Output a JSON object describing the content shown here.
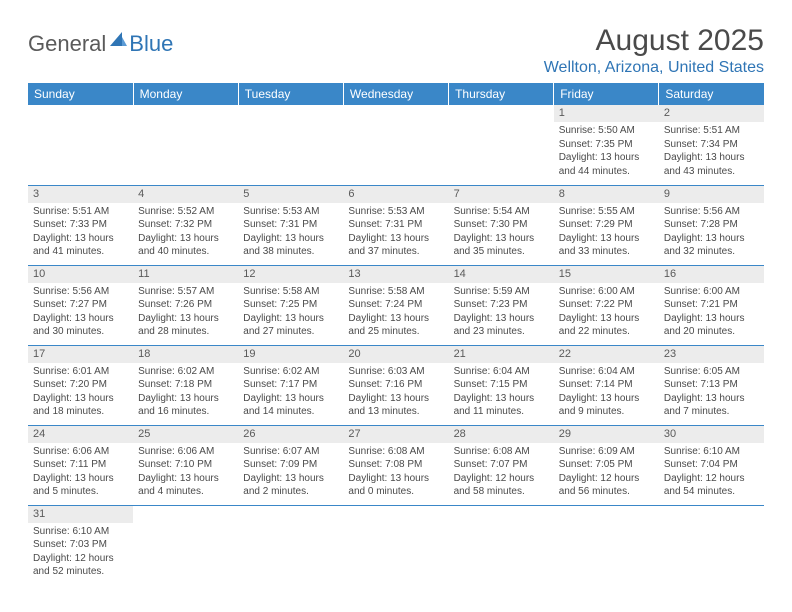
{
  "logo": {
    "part1": "General",
    "part2": "Blue"
  },
  "title": "August 2025",
  "location": "Wellton, Arizona, United States",
  "colors": {
    "header_bg": "#3a87c8",
    "header_fg": "#ffffff",
    "daynum_bg": "#ececec",
    "text": "#4a4a4a",
    "accent": "#2f75b5",
    "row_border": "#3a87c8"
  },
  "weekdays": [
    "Sunday",
    "Monday",
    "Tuesday",
    "Wednesday",
    "Thursday",
    "Friday",
    "Saturday"
  ],
  "weeks": [
    [
      null,
      null,
      null,
      null,
      null,
      {
        "n": "1",
        "sr": "Sunrise: 5:50 AM",
        "ss": "Sunset: 7:35 PM",
        "dl": "Daylight: 13 hours and 44 minutes."
      },
      {
        "n": "2",
        "sr": "Sunrise: 5:51 AM",
        "ss": "Sunset: 7:34 PM",
        "dl": "Daylight: 13 hours and 43 minutes."
      }
    ],
    [
      {
        "n": "3",
        "sr": "Sunrise: 5:51 AM",
        "ss": "Sunset: 7:33 PM",
        "dl": "Daylight: 13 hours and 41 minutes."
      },
      {
        "n": "4",
        "sr": "Sunrise: 5:52 AM",
        "ss": "Sunset: 7:32 PM",
        "dl": "Daylight: 13 hours and 40 minutes."
      },
      {
        "n": "5",
        "sr": "Sunrise: 5:53 AM",
        "ss": "Sunset: 7:31 PM",
        "dl": "Daylight: 13 hours and 38 minutes."
      },
      {
        "n": "6",
        "sr": "Sunrise: 5:53 AM",
        "ss": "Sunset: 7:31 PM",
        "dl": "Daylight: 13 hours and 37 minutes."
      },
      {
        "n": "7",
        "sr": "Sunrise: 5:54 AM",
        "ss": "Sunset: 7:30 PM",
        "dl": "Daylight: 13 hours and 35 minutes."
      },
      {
        "n": "8",
        "sr": "Sunrise: 5:55 AM",
        "ss": "Sunset: 7:29 PM",
        "dl": "Daylight: 13 hours and 33 minutes."
      },
      {
        "n": "9",
        "sr": "Sunrise: 5:56 AM",
        "ss": "Sunset: 7:28 PM",
        "dl": "Daylight: 13 hours and 32 minutes."
      }
    ],
    [
      {
        "n": "10",
        "sr": "Sunrise: 5:56 AM",
        "ss": "Sunset: 7:27 PM",
        "dl": "Daylight: 13 hours and 30 minutes."
      },
      {
        "n": "11",
        "sr": "Sunrise: 5:57 AM",
        "ss": "Sunset: 7:26 PM",
        "dl": "Daylight: 13 hours and 28 minutes."
      },
      {
        "n": "12",
        "sr": "Sunrise: 5:58 AM",
        "ss": "Sunset: 7:25 PM",
        "dl": "Daylight: 13 hours and 27 minutes."
      },
      {
        "n": "13",
        "sr": "Sunrise: 5:58 AM",
        "ss": "Sunset: 7:24 PM",
        "dl": "Daylight: 13 hours and 25 minutes."
      },
      {
        "n": "14",
        "sr": "Sunrise: 5:59 AM",
        "ss": "Sunset: 7:23 PM",
        "dl": "Daylight: 13 hours and 23 minutes."
      },
      {
        "n": "15",
        "sr": "Sunrise: 6:00 AM",
        "ss": "Sunset: 7:22 PM",
        "dl": "Daylight: 13 hours and 22 minutes."
      },
      {
        "n": "16",
        "sr": "Sunrise: 6:00 AM",
        "ss": "Sunset: 7:21 PM",
        "dl": "Daylight: 13 hours and 20 minutes."
      }
    ],
    [
      {
        "n": "17",
        "sr": "Sunrise: 6:01 AM",
        "ss": "Sunset: 7:20 PM",
        "dl": "Daylight: 13 hours and 18 minutes."
      },
      {
        "n": "18",
        "sr": "Sunrise: 6:02 AM",
        "ss": "Sunset: 7:18 PM",
        "dl": "Daylight: 13 hours and 16 minutes."
      },
      {
        "n": "19",
        "sr": "Sunrise: 6:02 AM",
        "ss": "Sunset: 7:17 PM",
        "dl": "Daylight: 13 hours and 14 minutes."
      },
      {
        "n": "20",
        "sr": "Sunrise: 6:03 AM",
        "ss": "Sunset: 7:16 PM",
        "dl": "Daylight: 13 hours and 13 minutes."
      },
      {
        "n": "21",
        "sr": "Sunrise: 6:04 AM",
        "ss": "Sunset: 7:15 PM",
        "dl": "Daylight: 13 hours and 11 minutes."
      },
      {
        "n": "22",
        "sr": "Sunrise: 6:04 AM",
        "ss": "Sunset: 7:14 PM",
        "dl": "Daylight: 13 hours and 9 minutes."
      },
      {
        "n": "23",
        "sr": "Sunrise: 6:05 AM",
        "ss": "Sunset: 7:13 PM",
        "dl": "Daylight: 13 hours and 7 minutes."
      }
    ],
    [
      {
        "n": "24",
        "sr": "Sunrise: 6:06 AM",
        "ss": "Sunset: 7:11 PM",
        "dl": "Daylight: 13 hours and 5 minutes."
      },
      {
        "n": "25",
        "sr": "Sunrise: 6:06 AM",
        "ss": "Sunset: 7:10 PM",
        "dl": "Daylight: 13 hours and 4 minutes."
      },
      {
        "n": "26",
        "sr": "Sunrise: 6:07 AM",
        "ss": "Sunset: 7:09 PM",
        "dl": "Daylight: 13 hours and 2 minutes."
      },
      {
        "n": "27",
        "sr": "Sunrise: 6:08 AM",
        "ss": "Sunset: 7:08 PM",
        "dl": "Daylight: 13 hours and 0 minutes."
      },
      {
        "n": "28",
        "sr": "Sunrise: 6:08 AM",
        "ss": "Sunset: 7:07 PM",
        "dl": "Daylight: 12 hours and 58 minutes."
      },
      {
        "n": "29",
        "sr": "Sunrise: 6:09 AM",
        "ss": "Sunset: 7:05 PM",
        "dl": "Daylight: 12 hours and 56 minutes."
      },
      {
        "n": "30",
        "sr": "Sunrise: 6:10 AM",
        "ss": "Sunset: 7:04 PM",
        "dl": "Daylight: 12 hours and 54 minutes."
      }
    ],
    [
      {
        "n": "31",
        "sr": "Sunrise: 6:10 AM",
        "ss": "Sunset: 7:03 PM",
        "dl": "Daylight: 12 hours and 52 minutes."
      },
      null,
      null,
      null,
      null,
      null,
      null
    ]
  ]
}
